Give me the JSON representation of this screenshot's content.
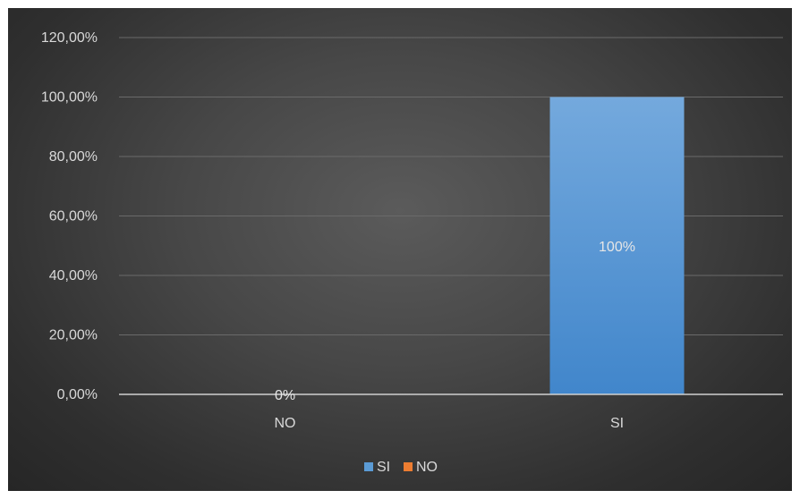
{
  "chart_data": {
    "type": "bar",
    "title": "",
    "xlabel": "",
    "ylabel": "",
    "categories": [
      "NO",
      "SI"
    ],
    "series": [
      {
        "name": "SI",
        "color": "#5b9bd5",
        "values": [
          0,
          100
        ]
      },
      {
        "name": "NO",
        "color": "#ed7d31",
        "values": [
          0,
          0
        ]
      }
    ],
    "data_labels": [
      "0%",
      "100%"
    ],
    "ylim": [
      0,
      120
    ],
    "yticks": [
      0,
      20,
      40,
      60,
      80,
      100,
      120
    ],
    "ytick_labels": [
      "0,00%",
      "20,00%",
      "40,00%",
      "60,00%",
      "80,00%",
      "100,00%",
      "120,00%"
    ],
    "grid": true,
    "legend_position": "bottom"
  }
}
